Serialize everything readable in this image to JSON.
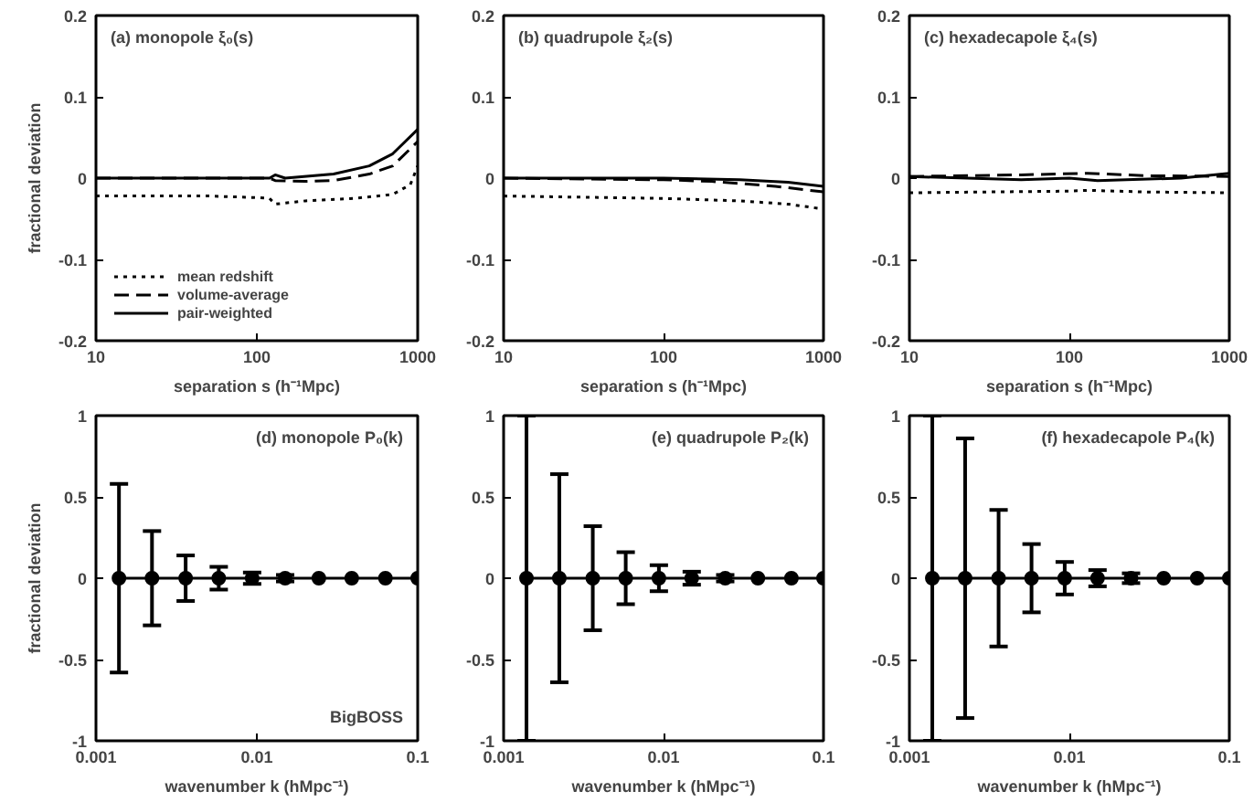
{
  "chart_data": [
    {
      "type": "line",
      "title": "(a) monopole ξ₀(s)",
      "xlabel": "separation s (h⁻¹Mpc)",
      "ylabel": "fractional deviation",
      "log": "x",
      "xlim": [
        10,
        1000
      ],
      "ylim": [
        -0.2,
        0.2
      ],
      "xticks": [
        10,
        100,
        1000
      ],
      "yticks": [
        -0.2,
        -0.1,
        0,
        0.1,
        0.2
      ],
      "grid": false,
      "legend": "bottom left",
      "series": [
        {
          "name": "mean redshift",
          "color": "#000000",
          "line_style": "dotted",
          "x": [
            10,
            50,
            100,
            120,
            130,
            200,
            400,
            700,
            900,
            1000
          ],
          "values": [
            -0.022,
            -0.022,
            -0.024,
            -0.025,
            -0.032,
            -0.028,
            -0.025,
            -0.02,
            -0.008,
            0.015
          ]
        },
        {
          "name": "volume-average",
          "color": "#000000",
          "line_style": "dashed",
          "x": [
            10,
            50,
            100,
            120,
            130,
            200,
            300,
            500,
            700,
            1000
          ],
          "values": [
            0,
            0,
            0,
            0,
            -0.003,
            -0.004,
            -0.003,
            0.005,
            0.015,
            0.045
          ]
        },
        {
          "name": "pair-weighted",
          "color": "#000000",
          "line_style": "solid",
          "x": [
            10,
            50,
            100,
            120,
            130,
            150,
            300,
            500,
            700,
            1000
          ],
          "values": [
            0,
            0,
            0,
            0,
            0.004,
            0,
            0.005,
            0.015,
            0.03,
            0.06
          ]
        }
      ]
    },
    {
      "type": "line",
      "title": "(b) quadrupole ξ₂(s)",
      "xlabel": "separation s (h⁻¹Mpc)",
      "log": "x",
      "xlim": [
        10,
        1000
      ],
      "ylim": [
        -0.2,
        0.2
      ],
      "xticks": [
        10,
        100,
        1000
      ],
      "yticks": [
        -0.2,
        -0.1,
        0,
        0.1,
        0.2
      ],
      "grid": false,
      "series": [
        {
          "color": "#000000",
          "line_style": "dotted",
          "x": [
            10,
            100,
            300,
            600,
            1000
          ],
          "values": [
            -0.022,
            -0.025,
            -0.028,
            -0.032,
            -0.038
          ]
        },
        {
          "color": "#000000",
          "line_style": "dashed",
          "x": [
            10,
            100,
            200,
            500,
            1000
          ],
          "values": [
            0,
            -0.002,
            -0.004,
            -0.01,
            -0.017
          ]
        },
        {
          "color": "#000000",
          "line_style": "solid",
          "x": [
            10,
            100,
            300,
            600,
            1000
          ],
          "values": [
            0,
            0,
            -0.002,
            -0.005,
            -0.01
          ]
        }
      ]
    },
    {
      "type": "line",
      "title": "(c) hexadecapole ξ₄(s)",
      "xlabel": "separation s (h⁻¹Mpc)",
      "log": "x",
      "xlim": [
        10,
        1000
      ],
      "ylim": [
        -0.2,
        0.2
      ],
      "xticks": [
        10,
        100,
        1000
      ],
      "yticks": [
        -0.2,
        -0.1,
        0,
        0.1,
        0.2
      ],
      "grid": false,
      "series": [
        {
          "color": "#000000",
          "line_style": "dotted",
          "x": [
            10,
            100,
            130,
            300,
            1000
          ],
          "values": [
            -0.018,
            -0.016,
            -0.015,
            -0.017,
            -0.018
          ]
        },
        {
          "color": "#000000",
          "line_style": "dashed",
          "x": [
            10,
            50,
            130,
            300,
            1000
          ],
          "values": [
            0.002,
            0.004,
            0.006,
            0.003,
            0.002
          ]
        },
        {
          "color": "#000000",
          "line_style": "solid",
          "x": [
            10,
            50,
            100,
            150,
            500,
            1000
          ],
          "values": [
            0.002,
            -0.002,
            0,
            -0.003,
            0,
            0.006
          ]
        }
      ]
    },
    {
      "type": "line",
      "title": "(d) monopole P₀(k)",
      "xlabel": "wavenumber k (hMpc⁻¹)",
      "ylabel": "fractional deviation",
      "log": "x",
      "xlim": [
        0.001,
        0.1
      ],
      "ylim": [
        -1,
        1
      ],
      "xticks": [
        0.001,
        0.01,
        0.1
      ],
      "yticks": [
        -1,
        -0.5,
        0,
        0.5,
        1
      ],
      "grid": false,
      "marker": "circle",
      "annotations": [
        "BigBOSS"
      ],
      "x": [
        0.00139,
        0.00223,
        0.00361,
        0.0058,
        0.00935,
        0.015,
        0.0243,
        0.0389,
        0.063,
        0.1
      ],
      "series": [
        {
          "color": "#000000",
          "values": [
            0,
            0,
            0,
            0,
            0,
            0,
            0,
            0,
            0,
            0
          ],
          "errors": [
            0.58,
            0.29,
            0.14,
            0.07,
            0.035,
            0.02,
            null,
            null,
            null,
            null
          ]
        }
      ]
    },
    {
      "type": "line",
      "title": "(e) quadrupole P₂(k)",
      "xlabel": "wavenumber k (hMpc⁻¹)",
      "log": "x",
      "xlim": [
        0.001,
        0.1
      ],
      "ylim": [
        -1,
        1
      ],
      "xticks": [
        0.001,
        0.01,
        0.1
      ],
      "yticks": [
        -1,
        -0.5,
        0,
        0.5,
        1
      ],
      "grid": false,
      "marker": "circle",
      "x": [
        0.00139,
        0.00223,
        0.00361,
        0.0058,
        0.00935,
        0.015,
        0.0243,
        0.0389,
        0.063,
        0.1
      ],
      "series": [
        {
          "color": "#000000",
          "values": [
            0,
            0,
            0,
            0,
            0,
            0,
            0,
            0,
            0,
            0
          ],
          "errors": [
            1,
            0.64,
            0.32,
            0.16,
            0.08,
            0.04,
            0.02,
            null,
            null,
            null
          ]
        }
      ]
    },
    {
      "type": "line",
      "title": "(f) hexadecapole P₄(k)",
      "xlabel": "wavenumber k (hMpc⁻¹)",
      "log": "x",
      "xlim": [
        0.001,
        0.1
      ],
      "ylim": [
        -1,
        1
      ],
      "xticks": [
        0.001,
        0.01,
        0.1
      ],
      "yticks": [
        -1,
        -0.5,
        0,
        0.5,
        1
      ],
      "grid": false,
      "marker": "circle",
      "x": [
        0.00139,
        0.00223,
        0.00361,
        0.0058,
        0.00935,
        0.015,
        0.0243,
        0.0389,
        0.063,
        0.1
      ],
      "series": [
        {
          "color": "#000000",
          "values": [
            0,
            0,
            0,
            0,
            0,
            0,
            0,
            0,
            0,
            0
          ],
          "errors": [
            1,
            0.86,
            0.42,
            0.21,
            0.1,
            0.05,
            0.03,
            null,
            null,
            null
          ]
        }
      ]
    }
  ]
}
